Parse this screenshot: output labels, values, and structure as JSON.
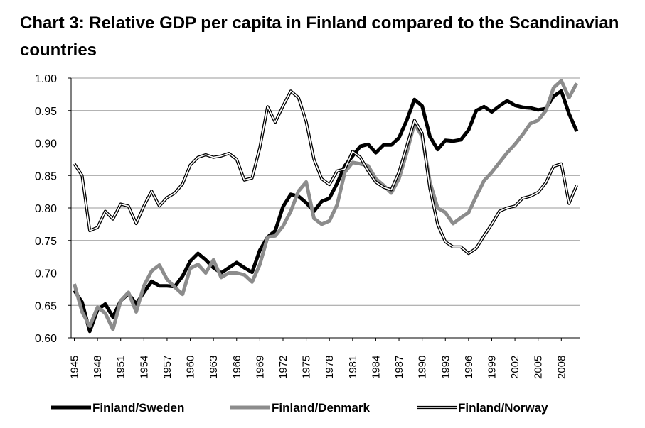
{
  "chart_data": {
    "type": "line",
    "title": "Chart 3: Relative GDP per capita in Finland compared to the Scandinavian countries",
    "xlabel": "",
    "ylabel": "",
    "ylim": [
      0.6,
      1.0
    ],
    "yticks": [
      "0.60",
      "0.65",
      "0.70",
      "0.75",
      "0.80",
      "0.85",
      "0.90",
      "0.95",
      "1.00"
    ],
    "ytick_values": [
      0.6,
      0.65,
      0.7,
      0.75,
      0.8,
      0.85,
      0.9,
      0.95,
      1.0
    ],
    "xlim": [
      1945,
      2010
    ],
    "xticks": [
      "1945",
      "1948",
      "1951",
      "1954",
      "1957",
      "1960",
      "1963",
      "1966",
      "1969",
      "1972",
      "1975",
      "1978",
      "1981",
      "1984",
      "1987",
      "1990",
      "1993",
      "1996",
      "1999",
      "2002",
      "2005",
      "2008"
    ],
    "xtick_values": [
      1945,
      1948,
      1951,
      1954,
      1957,
      1960,
      1963,
      1966,
      1969,
      1972,
      1975,
      1978,
      1981,
      1984,
      1987,
      1990,
      1993,
      1996,
      1999,
      2002,
      2005,
      2008
    ],
    "grid": true,
    "legend_position": "bottom",
    "x": [
      1945,
      1946,
      1947,
      1948,
      1949,
      1950,
      1951,
      1952,
      1953,
      1954,
      1955,
      1956,
      1957,
      1958,
      1959,
      1960,
      1961,
      1962,
      1963,
      1964,
      1965,
      1966,
      1967,
      1968,
      1969,
      1970,
      1971,
      1972,
      1973,
      1974,
      1975,
      1976,
      1977,
      1978,
      1979,
      1980,
      1981,
      1982,
      1983,
      1984,
      1985,
      1986,
      1987,
      1988,
      1989,
      1990,
      1991,
      1992,
      1993,
      1994,
      1995,
      1996,
      1997,
      1998,
      1999,
      2000,
      2001,
      2002,
      2003,
      2004,
      2005,
      2006,
      2007,
      2008,
      2009,
      2010
    ],
    "series": [
      {
        "name": "Finland/Sweden",
        "style": "thick-black",
        "color": "#000000",
        "values": [
          0.673,
          0.655,
          0.61,
          0.643,
          0.652,
          0.632,
          0.657,
          0.668,
          0.652,
          0.67,
          0.687,
          0.68,
          0.68,
          0.679,
          0.695,
          0.718,
          0.73,
          0.72,
          0.708,
          0.7,
          0.708,
          0.716,
          0.708,
          0.701,
          0.735,
          0.755,
          0.765,
          0.802,
          0.821,
          0.818,
          0.808,
          0.795,
          0.81,
          0.815,
          0.838,
          0.865,
          0.88,
          0.895,
          0.898,
          0.885,
          0.897,
          0.897,
          0.908,
          0.935,
          0.967,
          0.957,
          0.91,
          0.89,
          0.904,
          0.903,
          0.905,
          0.92,
          0.95,
          0.956,
          0.948,
          0.957,
          0.965,
          0.958,
          0.955,
          0.954,
          0.951,
          0.953,
          0.972,
          0.98,
          0.945,
          0.918
        ]
      },
      {
        "name": "Finland/Denmark",
        "style": "thick-gray",
        "color": "#8c8c8c",
        "values": [
          0.683,
          0.64,
          0.618,
          0.647,
          0.638,
          0.613,
          0.657,
          0.67,
          0.64,
          0.68,
          0.703,
          0.712,
          0.69,
          0.678,
          0.667,
          0.707,
          0.713,
          0.7,
          0.72,
          0.693,
          0.7,
          0.7,
          0.697,
          0.686,
          0.713,
          0.755,
          0.757,
          0.772,
          0.795,
          0.826,
          0.84,
          0.784,
          0.775,
          0.78,
          0.805,
          0.855,
          0.87,
          0.868,
          0.865,
          0.845,
          0.835,
          0.823,
          0.845,
          0.885,
          0.93,
          0.91,
          0.84,
          0.8,
          0.793,
          0.776,
          0.785,
          0.793,
          0.818,
          0.842,
          0.855,
          0.87,
          0.885,
          0.898,
          0.913,
          0.93,
          0.935,
          0.95,
          0.985,
          0.996,
          0.97,
          0.992
        ]
      },
      {
        "name": "Finland/Norway",
        "style": "double-line",
        "color": "#000000",
        "values": [
          0.868,
          0.85,
          0.765,
          0.77,
          0.795,
          0.783,
          0.806,
          0.803,
          0.776,
          0.803,
          0.826,
          0.803,
          0.816,
          0.823,
          0.837,
          0.866,
          0.878,
          0.882,
          0.878,
          0.88,
          0.884,
          0.875,
          0.843,
          0.846,
          0.893,
          0.956,
          0.932,
          0.957,
          0.98,
          0.97,
          0.933,
          0.875,
          0.845,
          0.836,
          0.857,
          0.86,
          0.887,
          0.878,
          0.857,
          0.84,
          0.832,
          0.828,
          0.855,
          0.895,
          0.935,
          0.915,
          0.83,
          0.775,
          0.748,
          0.74,
          0.74,
          0.73,
          0.738,
          0.757,
          0.775,
          0.795,
          0.8,
          0.803,
          0.815,
          0.818,
          0.824,
          0.839,
          0.864,
          0.868,
          0.807,
          0.835
        ]
      }
    ]
  }
}
